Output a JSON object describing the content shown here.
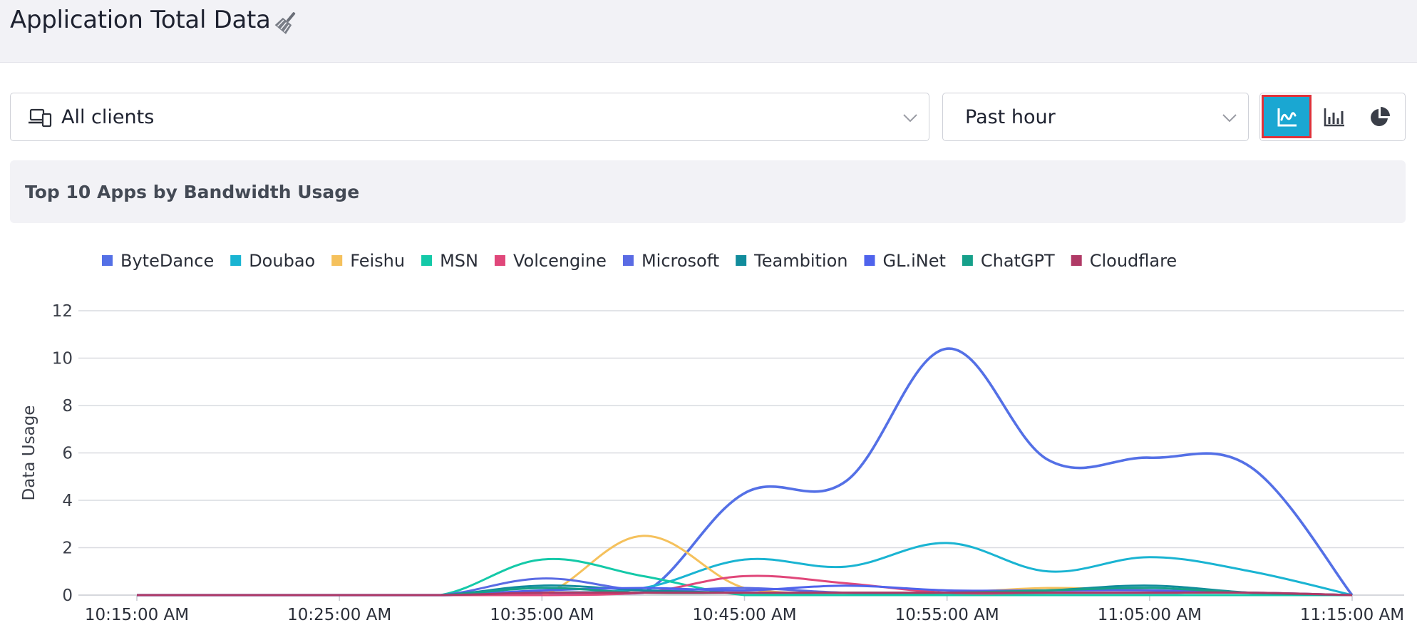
{
  "header": {
    "title": "Application Total Data",
    "clear_icon": "broom-icon"
  },
  "filters": {
    "clients": {
      "icon": "devices-icon",
      "value": "All clients"
    },
    "time_range": {
      "value": "Past hour"
    }
  },
  "view_toggle": {
    "options": [
      {
        "icon": "line-chart-icon",
        "active": true
      },
      {
        "icon": "bar-chart-icon",
        "active": false
      },
      {
        "icon": "pie-chart-icon",
        "active": false
      }
    ],
    "active_color": "#1aa7d2",
    "highlight_color": "#e0323a"
  },
  "card": {
    "title": "Top 10 Apps by Bandwidth Usage"
  },
  "chart_data": {
    "type": "line",
    "ylabel": "Data Usage",
    "ylim": [
      0,
      12
    ],
    "yticks": [
      "0",
      "2",
      "4",
      "6",
      "8",
      "10",
      "12"
    ],
    "xticks": [
      "10:15:00 AM",
      "10:25:00 AM",
      "10:35:00 AM",
      "10:45:00 AM",
      "10:55:00 AM",
      "11:05:00 AM",
      "11:15:00 AM"
    ],
    "x": [
      "10:15:00 AM",
      "10:20:00 AM",
      "10:25:00 AM",
      "10:30:00 AM",
      "10:35:00 AM",
      "10:40:00 AM",
      "10:45:00 AM",
      "10:50:00 AM",
      "10:55:00 AM",
      "11:00:00 AM",
      "11:05:00 AM",
      "11:10:00 AM",
      "11:15:00 AM"
    ],
    "grid": true,
    "legend_position": "top",
    "series": [
      {
        "name": "ByteDance",
        "color": "#5470e6",
        "values": [
          0,
          0,
          0,
          0,
          0.1,
          0.1,
          4.3,
          4.8,
          10.4,
          5.7,
          5.8,
          5.4,
          0
        ]
      },
      {
        "name": "Doubao",
        "color": "#1ab4d2",
        "values": [
          0,
          0,
          0,
          0,
          0.1,
          0.3,
          1.5,
          1.2,
          2.2,
          1.0,
          1.6,
          1.0,
          0
        ]
      },
      {
        "name": "Feishu",
        "color": "#f5c15c",
        "values": [
          0,
          0,
          0,
          0,
          0,
          2.5,
          0.3,
          0.1,
          0.1,
          0.3,
          0.2,
          0.1,
          0
        ]
      },
      {
        "name": "MSN",
        "color": "#14c9a8",
        "values": [
          0,
          0,
          0,
          0,
          1.5,
          0.8,
          0,
          0,
          0,
          0,
          0,
          0,
          0
        ]
      },
      {
        "name": "Volcengine",
        "color": "#e0477a",
        "values": [
          0,
          0,
          0,
          0,
          0,
          0.1,
          0.8,
          0.5,
          0.1,
          0.1,
          0.1,
          0.1,
          0
        ]
      },
      {
        "name": "Microsoft",
        "color": "#5a6be4",
        "values": [
          0,
          0,
          0,
          0,
          0.7,
          0.2,
          0.3,
          0.1,
          0.1,
          0.1,
          0.1,
          0.1,
          0
        ]
      },
      {
        "name": "Teambition",
        "color": "#118c9c",
        "values": [
          0,
          0,
          0,
          0,
          0.4,
          0.2,
          0.1,
          0.1,
          0.1,
          0.2,
          0.4,
          0.1,
          0
        ]
      },
      {
        "name": "GL.iNet",
        "color": "#4f63ec",
        "values": [
          0,
          0,
          0,
          0,
          0.2,
          0.3,
          0.2,
          0.4,
          0.2,
          0.2,
          0.2,
          0.1,
          0
        ]
      },
      {
        "name": "ChatGPT",
        "color": "#16a08a",
        "values": [
          0,
          0,
          0,
          0,
          0.3,
          0.1,
          0.1,
          0.1,
          0.1,
          0.2,
          0.3,
          0.1,
          0
        ]
      },
      {
        "name": "Cloudflare",
        "color": "#b03a66",
        "values": [
          0,
          0,
          0,
          0,
          0.1,
          0.1,
          0.1,
          0.1,
          0.1,
          0.1,
          0.1,
          0.1,
          0
        ]
      }
    ]
  }
}
